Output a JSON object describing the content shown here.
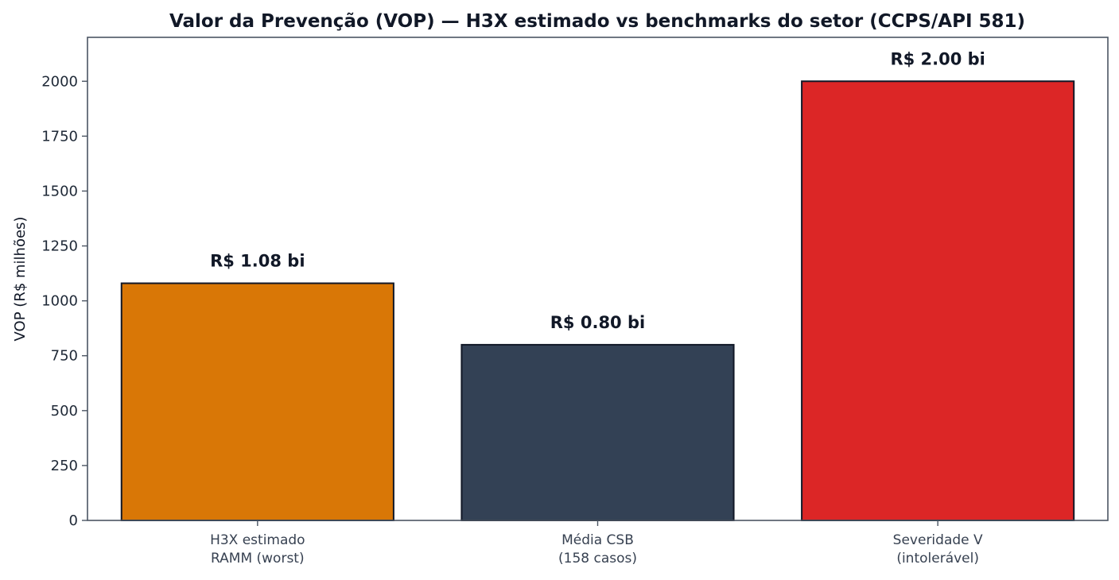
{
  "chart_data": {
    "type": "bar",
    "title": "Valor da Prevenção (VOP) — H3X estimado vs benchmarks do setor (CCPS/API 581)",
    "xlabel": "",
    "ylabel": "VOP (R$ milhões)",
    "ylim": [
      0,
      2200
    ],
    "yticks": [
      0,
      250,
      500,
      750,
      1000,
      1250,
      1500,
      1750,
      2000
    ],
    "grid": false,
    "categories": [
      [
        "H3X estimado",
        "RAMM (worst)"
      ],
      [
        "Média CSB",
        "(158 casos)"
      ],
      [
        "Severidade V",
        "(intolerável)"
      ]
    ],
    "values": [
      1080,
      800,
      2000
    ],
    "data_labels": [
      "R$ 1.08 bi",
      "R$ 0.80 bi",
      "R$ 2.00 bi"
    ],
    "colors": [
      "#d97706",
      "#334155",
      "#dc2626"
    ],
    "edge_color": "#111827",
    "axis_color": "#4b5563"
  }
}
